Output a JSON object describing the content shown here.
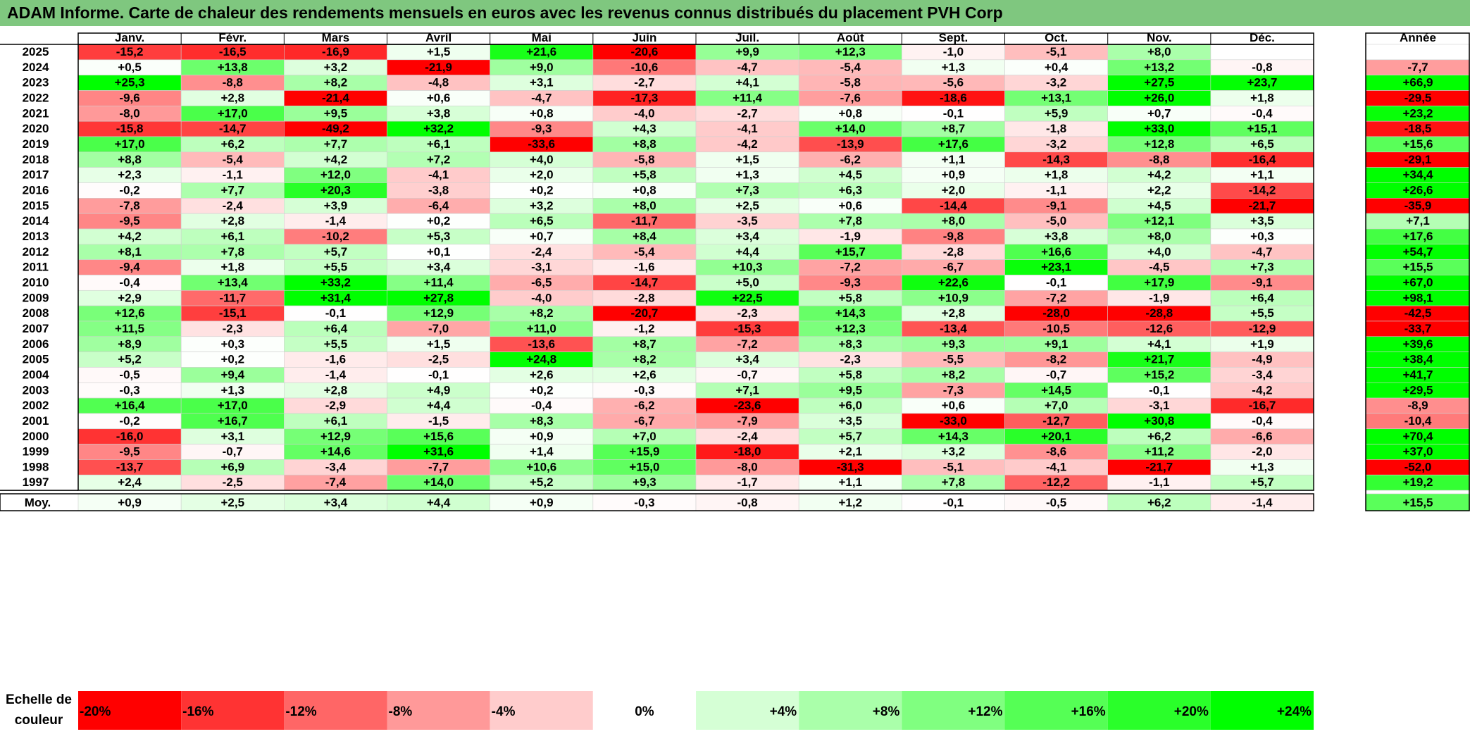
{
  "title": "ADAM Informe. Carte de chaleur des rendements mensuels en euros avec les revenus connus distribués du placement PVH Corp",
  "colors": {
    "title_bg": "#7fc77f",
    "max_red": "#ff0000",
    "max_green": "#00ff00",
    "grid": "#000000"
  },
  "chart_data": {
    "type": "heatmap",
    "title": "ADAM Informe. Carte de chaleur des rendements mensuels en euros avec les revenus connus distribués du placement PVH Corp",
    "months": [
      "Janv.",
      "Févr.",
      "Mars",
      "Avril",
      "Mai",
      "Juin",
      "Juil.",
      "Août",
      "Sept.",
      "Oct.",
      "Nov.",
      "Déc."
    ],
    "year_header": "Année",
    "rows": [
      {
        "year": "2025",
        "values": [
          "-15,2",
          "-16,5",
          "-16,9",
          "+1,5",
          "+21,6",
          "-20,6",
          "+9,9",
          "+12,3",
          "-1,0",
          "-5,1",
          "+8,0",
          ""
        ],
        "annual": ""
      },
      {
        "year": "2024",
        "values": [
          "+0,5",
          "+13,8",
          "+3,2",
          "-21,9",
          "+9,0",
          "-10,6",
          "-4,7",
          "-5,4",
          "+1,3",
          "+0,4",
          "+13,2",
          "-0,8"
        ],
        "annual": "-7,7"
      },
      {
        "year": "2023",
        "values": [
          "+25,3",
          "-8,8",
          "+8,2",
          "-4,8",
          "+3,1",
          "-2,7",
          "+4,1",
          "-5,8",
          "-5,6",
          "-3,2",
          "+27,5",
          "+23,7"
        ],
        "annual": "+66,9"
      },
      {
        "year": "2022",
        "values": [
          "-9,6",
          "+2,8",
          "-21,4",
          "+0,6",
          "-4,7",
          "-17,3",
          "+11,4",
          "-7,6",
          "-18,6",
          "+13,1",
          "+26,0",
          "+1,8"
        ],
        "annual": "-29,5"
      },
      {
        "year": "2021",
        "values": [
          "-8,0",
          "+17,0",
          "+9,5",
          "+3,8",
          "+0,8",
          "-4,0",
          "-2,7",
          "+0,8",
          "-0,1",
          "+5,9",
          "+0,7",
          "-0,4"
        ],
        "annual": "+23,2"
      },
      {
        "year": "2020",
        "values": [
          "-15,8",
          "-14,7",
          "-49,2",
          "+32,2",
          "-9,3",
          "+4,3",
          "-4,1",
          "+14,0",
          "+8,7",
          "-1,8",
          "+33,0",
          "+15,1"
        ],
        "annual": "-18,5"
      },
      {
        "year": "2019",
        "values": [
          "+17,0",
          "+6,2",
          "+7,7",
          "+6,1",
          "-33,6",
          "+8,8",
          "-4,2",
          "-13,9",
          "+17,6",
          "-3,2",
          "+12,8",
          "+6,5"
        ],
        "annual": "+15,6"
      },
      {
        "year": "2018",
        "values": [
          "+8,8",
          "-5,4",
          "+4,2",
          "+7,2",
          "+4,0",
          "-5,8",
          "+1,5",
          "-6,2",
          "+1,1",
          "-14,3",
          "-8,8",
          "-16,4"
        ],
        "annual": "-29,1"
      },
      {
        "year": "2017",
        "values": [
          "+2,3",
          "-1,1",
          "+12,0",
          "-4,1",
          "+2,0",
          "+5,8",
          "+1,3",
          "+4,5",
          "+0,9",
          "+1,8",
          "+4,2",
          "+1,1"
        ],
        "annual": "+34,4"
      },
      {
        "year": "2016",
        "values": [
          "-0,2",
          "+7,7",
          "+20,3",
          "-3,8",
          "+0,2",
          "+0,8",
          "+7,3",
          "+6,3",
          "+2,0",
          "-1,1",
          "+2,2",
          "-14,2"
        ],
        "annual": "+26,6"
      },
      {
        "year": "2015",
        "values": [
          "-7,8",
          "-2,4",
          "+3,9",
          "-6,4",
          "+3,2",
          "+8,0",
          "+2,5",
          "+0,6",
          "-14,4",
          "-9,1",
          "+4,5",
          "-21,7"
        ],
        "annual": "-35,9"
      },
      {
        "year": "2014",
        "values": [
          "-9,5",
          "+2,8",
          "-1,4",
          "+0,2",
          "+6,5",
          "-11,7",
          "-3,5",
          "+7,8",
          "+8,0",
          "-5,0",
          "+12,1",
          "+3,5"
        ],
        "annual": "+7,1"
      },
      {
        "year": "2013",
        "values": [
          "+4,2",
          "+6,1",
          "-10,2",
          "+5,3",
          "+0,7",
          "+8,4",
          "+3,4",
          "-1,9",
          "-9,8",
          "+3,8",
          "+8,0",
          "+0,3"
        ],
        "annual": "+17,6"
      },
      {
        "year": "2012",
        "values": [
          "+8,1",
          "+7,8",
          "+5,7",
          "+0,1",
          "-2,4",
          "-5,4",
          "+4,4",
          "+15,7",
          "-2,8",
          "+16,6",
          "+4,0",
          "-4,7"
        ],
        "annual": "+54,7"
      },
      {
        "year": "2011",
        "values": [
          "-9,4",
          "+1,8",
          "+5,5",
          "+3,4",
          "-3,1",
          "-1,6",
          "+10,3",
          "-7,2",
          "-6,7",
          "+23,1",
          "-4,5",
          "+7,3"
        ],
        "annual": "+15,5"
      },
      {
        "year": "2010",
        "values": [
          "-0,4",
          "+13,4",
          "+33,2",
          "+11,4",
          "-6,5",
          "-14,7",
          "+5,0",
          "-9,3",
          "+22,6",
          "-0,1",
          "+17,9",
          "-9,1"
        ],
        "annual": "+67,0"
      },
      {
        "year": "2009",
        "values": [
          "+2,9",
          "-11,7",
          "+31,4",
          "+27,8",
          "-4,0",
          "-2,8",
          "+22,5",
          "+5,8",
          "+10,9",
          "-7,2",
          "-1,9",
          "+6,4"
        ],
        "annual": "+98,1"
      },
      {
        "year": "2008",
        "values": [
          "+12,6",
          "-15,1",
          "-0,1",
          "+12,9",
          "+8,2",
          "-20,7",
          "-2,3",
          "+14,3",
          "+2,8",
          "-28,0",
          "-28,8",
          "+5,5"
        ],
        "annual": "-42,5"
      },
      {
        "year": "2007",
        "values": [
          "+11,5",
          "-2,3",
          "+6,4",
          "-7,0",
          "+11,0",
          "-1,2",
          "-15,3",
          "+12,3",
          "-13,4",
          "-10,5",
          "-12,6",
          "-12,9"
        ],
        "annual": "-33,7"
      },
      {
        "year": "2006",
        "values": [
          "+8,9",
          "+0,3",
          "+5,5",
          "+1,5",
          "-13,6",
          "+8,7",
          "-7,2",
          "+8,3",
          "+9,3",
          "+9,1",
          "+4,1",
          "+1,9"
        ],
        "annual": "+39,6"
      },
      {
        "year": "2005",
        "values": [
          "+5,2",
          "+0,2",
          "-1,6",
          "-2,5",
          "+24,8",
          "+8,2",
          "+3,4",
          "-2,3",
          "-5,5",
          "-8,2",
          "+21,7",
          "-4,9"
        ],
        "annual": "+38,4"
      },
      {
        "year": "2004",
        "values": [
          "-0,5",
          "+9,4",
          "-1,4",
          "-0,1",
          "+2,6",
          "+2,6",
          "-0,7",
          "+5,8",
          "+8,2",
          "-0,7",
          "+15,2",
          "-3,4"
        ],
        "annual": "+41,7"
      },
      {
        "year": "2003",
        "values": [
          "-0,3",
          "+1,3",
          "+2,8",
          "+4,9",
          "+0,2",
          "-0,3",
          "+7,1",
          "+9,5",
          "-7,3",
          "+14,5",
          "-0,1",
          "-4,2"
        ],
        "annual": "+29,5"
      },
      {
        "year": "2002",
        "values": [
          "+16,4",
          "+17,0",
          "-2,9",
          "+4,4",
          "-0,4",
          "-6,2",
          "-23,6",
          "+6,0",
          "+0,6",
          "+7,0",
          "-3,1",
          "-16,7"
        ],
        "annual": "-8,9"
      },
      {
        "year": "2001",
        "values": [
          "-0,2",
          "+16,7",
          "+6,1",
          "-1,5",
          "+8,3",
          "-6,7",
          "-7,9",
          "+3,5",
          "-33,0",
          "-12,7",
          "+30,8",
          "-0,4"
        ],
        "annual": "-10,4"
      },
      {
        "year": "2000",
        "values": [
          "-16,0",
          "+3,1",
          "+12,9",
          "+15,6",
          "+0,9",
          "+7,0",
          "-2,4",
          "+5,7",
          "+14,3",
          "+20,1",
          "+6,2",
          "-6,6"
        ],
        "annual": "+70,4"
      },
      {
        "year": "1999",
        "values": [
          "-9,5",
          "-0,7",
          "+14,6",
          "+31,6",
          "+1,4",
          "+15,9",
          "-18,0",
          "+2,1",
          "+3,2",
          "-8,6",
          "+11,2",
          "-2,0"
        ],
        "annual": "+37,0"
      },
      {
        "year": "1998",
        "values": [
          "-13,7",
          "+6,9",
          "-3,4",
          "-7,7",
          "+10,6",
          "+15,0",
          "-8,0",
          "-31,3",
          "-5,1",
          "-4,1",
          "-21,7",
          "+1,3"
        ],
        "annual": "-52,0"
      },
      {
        "year": "1997",
        "values": [
          "+2,4",
          "-2,5",
          "-7,4",
          "+14,0",
          "+5,2",
          "+9,3",
          "-1,7",
          "+1,1",
          "+7,8",
          "-12,2",
          "-1,1",
          "+5,7"
        ],
        "annual": "+19,2"
      }
    ],
    "average": {
      "label": "Moy.",
      "values": [
        "+0,9",
        "+2,5",
        "+3,4",
        "+4,4",
        "+0,9",
        "-0,3",
        "-0,8",
        "+1,2",
        "-0,1",
        "-0,5",
        "+6,2",
        "-1,4"
      ],
      "annual": "+15,5"
    },
    "scale": {
      "label": "Echelle de couleur",
      "steps": [
        {
          "text": "-20%",
          "value": -20
        },
        {
          "text": "-16%",
          "value": -16
        },
        {
          "text": "-12%",
          "value": -12
        },
        {
          "text": "-8%",
          "value": -8
        },
        {
          "text": "-4%",
          "value": -4
        },
        {
          "text": "0%",
          "value": 0
        },
        {
          "text": "+4%",
          "value": 4
        },
        {
          "text": "+8%",
          "value": 8
        },
        {
          "text": "+12%",
          "value": 12
        },
        {
          "text": "+16%",
          "value": 16
        },
        {
          "text": "+20%",
          "value": 20
        },
        {
          "text": "+24%",
          "value": 24
        }
      ]
    }
  }
}
